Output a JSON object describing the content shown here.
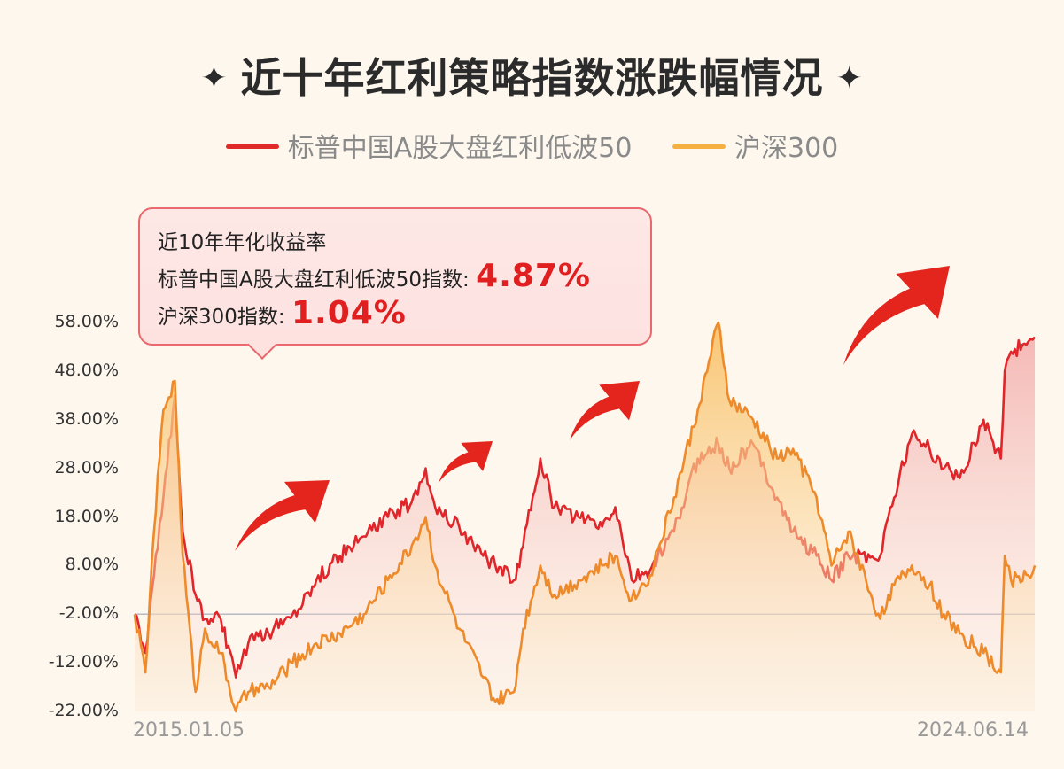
{
  "title": "近十年红利策略指数涨跌幅情况",
  "title_star": "✦",
  "legend": [
    {
      "name": "标普中国A股大盘红利低波50",
      "color": "#e02a2a"
    },
    {
      "name": "沪深300",
      "color": "#f5b041"
    }
  ],
  "callout": {
    "heading": "近10年年化收益率",
    "line1_label": "标普中国A股大盘红利低波50指数:",
    "line1_value": "4.87%",
    "line2_label": "沪深300指数:",
    "line2_value": "1.04%"
  },
  "chart_data": {
    "type": "line",
    "title": "近十年红利策略指数涨跌幅情况",
    "xlabel": "",
    "ylabel": "",
    "x_start_label": "2015.01.05",
    "x_end_label": "2024.06.14",
    "x_range": [
      "2015-01-05",
      "2024-06-14"
    ],
    "ylim": [
      -22,
      58
    ],
    "yticks": [
      58,
      48,
      38,
      28,
      18,
      8,
      -2,
      -12,
      -22
    ],
    "ytick_labels": [
      "58.00%",
      "48.00%",
      "38.00%",
      "28.00%",
      "18.00%",
      "8.00%",
      "-2.00%",
      "-12.00%",
      "-22.00%"
    ],
    "baseline": -2,
    "series": [
      {
        "name": "标普中国A股大盘红利低波50",
        "color": "#e02a2a",
        "dates": [
          "2015-01-05",
          "2015-02-15",
          "2015-03-20",
          "2015-04-25",
          "2015-06-08",
          "2015-07-08",
          "2015-08-26",
          "2015-10-01",
          "2015-12-01",
          "2016-01-28",
          "2016-03-15",
          "2016-06-01",
          "2016-09-01",
          "2016-12-01",
          "2017-03-01",
          "2017-06-01",
          "2017-09-01",
          "2017-12-01",
          "2018-01-24",
          "2018-03-01",
          "2018-06-01",
          "2018-09-01",
          "2018-10-18",
          "2018-12-28",
          "2019-02-01",
          "2019-04-08",
          "2019-06-01",
          "2019-09-01",
          "2019-12-01",
          "2020-01-20",
          "2020-03-23",
          "2020-06-01",
          "2020-09-01",
          "2020-12-01",
          "2021-02-18",
          "2021-04-01",
          "2021-07-01",
          "2021-10-01",
          "2021-12-01",
          "2022-03-01",
          "2022-04-27",
          "2022-07-01",
          "2022-10-31",
          "2022-12-01",
          "2023-03-01",
          "2023-05-08",
          "2023-07-01",
          "2023-09-01",
          "2023-12-01",
          "2024-02-05",
          "2024-02-20",
          "2024-03-15",
          "2024-05-20",
          "2024-06-14"
        ],
        "values": [
          -2,
          -10,
          6,
          22,
          43,
          15,
          2,
          -3,
          -3,
          -15,
          -8,
          -6,
          -2,
          5,
          10,
          14,
          18,
          21,
          28,
          20,
          16,
          10,
          8,
          5,
          12,
          30,
          20,
          18,
          16,
          20,
          5,
          7,
          15,
          30,
          33,
          28,
          33,
          22,
          15,
          10,
          5,
          10,
          10,
          18,
          35,
          32,
          28,
          26,
          38,
          30,
          48,
          52,
          54,
          55
        ]
      },
      {
        "name": "沪深300",
        "color": "#f08a2c",
        "dates": [
          "2015-01-05",
          "2015-02-15",
          "2015-03-20",
          "2015-04-25",
          "2015-06-08",
          "2015-07-08",
          "2015-08-26",
          "2015-10-01",
          "2015-12-01",
          "2016-01-28",
          "2016-03-15",
          "2016-06-01",
          "2016-09-01",
          "2016-12-01",
          "2017-03-01",
          "2017-06-01",
          "2017-09-01",
          "2017-12-01",
          "2018-01-24",
          "2018-03-01",
          "2018-06-01",
          "2018-09-01",
          "2018-10-18",
          "2018-12-28",
          "2019-02-01",
          "2019-04-08",
          "2019-06-01",
          "2019-09-01",
          "2019-12-01",
          "2020-01-20",
          "2020-03-23",
          "2020-06-01",
          "2020-09-01",
          "2020-12-01",
          "2021-02-18",
          "2021-04-01",
          "2021-07-01",
          "2021-10-01",
          "2021-12-01",
          "2022-03-01",
          "2022-04-27",
          "2022-07-01",
          "2022-10-31",
          "2022-12-01",
          "2023-03-01",
          "2023-05-08",
          "2023-07-01",
          "2023-09-01",
          "2023-12-01",
          "2024-02-05",
          "2024-02-20",
          "2024-03-15",
          "2024-05-20",
          "2024-06-14"
        ],
        "values": [
          -2,
          -14,
          15,
          40,
          46,
          10,
          -18,
          -5,
          -10,
          -22,
          -18,
          -17,
          -12,
          -8,
          -6,
          -2,
          5,
          12,
          18,
          8,
          -5,
          -15,
          -20,
          -18,
          -5,
          8,
          2,
          5,
          8,
          10,
          1,
          6,
          22,
          40,
          58,
          42,
          38,
          30,
          32,
          22,
          8,
          15,
          -3,
          2,
          8,
          4,
          -2,
          -6,
          -10,
          -14,
          10,
          5,
          6,
          8
        ]
      }
    ]
  }
}
